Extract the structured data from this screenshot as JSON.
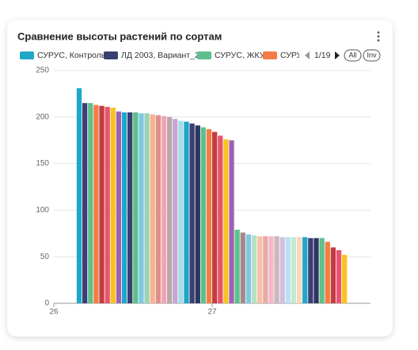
{
  "chart_data": {
    "type": "bar",
    "title": "Сравнение высоты растений по сортам",
    "x": [
      27
    ],
    "xlim": [
      26,
      28
    ],
    "xticks": [
      26,
      27
    ],
    "ylim": [
      0,
      250
    ],
    "yticks": [
      0,
      50,
      100,
      150,
      200,
      250
    ],
    "grid": true,
    "legend_page": "1/19",
    "legend_buttons": [
      "All",
      "Inv"
    ],
    "series": [
      {
        "name": "СУРУС, Контроль",
        "color": "#1fa7c9",
        "values": [
          231
        ]
      },
      {
        "name": "ЛД 2003, Вариант_2",
        "color": "#3b3f72",
        "values": [
          215
        ]
      },
      {
        "name": "СУРУС, ЖКУ",
        "color": "#5cc08c",
        "values": [
          215
        ]
      },
      {
        "name": "СУРУС",
        "color": "#f47c45",
        "values": [
          213
        ]
      },
      {
        "color": "#c23d3f",
        "values": [
          212
        ]
      },
      {
        "color": "#e8546f",
        "values": [
          211
        ]
      },
      {
        "color": "#f9c31f",
        "values": [
          210
        ]
      },
      {
        "color": "#9e62b5",
        "values": [
          206
        ]
      },
      {
        "color": "#1fa7c9",
        "values": [
          205
        ]
      },
      {
        "color": "#3b3f72",
        "values": [
          205
        ]
      },
      {
        "color": "#5cc08c",
        "values": [
          205
        ]
      },
      {
        "color": "#7fc9e0",
        "values": [
          204
        ]
      },
      {
        "color": "#9ad3b8",
        "values": [
          204
        ]
      },
      {
        "color": "#f7b38d",
        "values": [
          203
        ]
      },
      {
        "color": "#e08f8f",
        "values": [
          202
        ]
      },
      {
        "color": "#f2a3b5",
        "values": [
          201
        ]
      },
      {
        "color": "#b9a8a8",
        "values": [
          200
        ]
      },
      {
        "color": "#c4a6d4",
        "values": [
          198
        ]
      },
      {
        "color": "#a9dbe9",
        "values": [
          196
        ]
      },
      {
        "color": "#1fa7c9",
        "values": [
          195
        ]
      },
      {
        "color": "#3b3f72",
        "values": [
          193
        ]
      },
      {
        "color": "#2d3561",
        "values": [
          191
        ]
      },
      {
        "color": "#5cc08c",
        "values": [
          189
        ]
      },
      {
        "color": "#f47c45",
        "values": [
          187
        ]
      },
      {
        "color": "#c23d3f",
        "values": [
          184
        ]
      },
      {
        "color": "#e8546f",
        "values": [
          180
        ]
      },
      {
        "color": "#f9c31f",
        "values": [
          176
        ]
      },
      {
        "color": "#9e62b5",
        "values": [
          175
        ]
      },
      {
        "color": "#5cc08c",
        "values": [
          79
        ]
      },
      {
        "color": "#a38a8a",
        "values": [
          76
        ]
      },
      {
        "color": "#7fc9e0",
        "values": [
          74
        ]
      },
      {
        "color": "#b7e0c8",
        "values": [
          73
        ]
      },
      {
        "color": "#f7c2a2",
        "values": [
          72
        ]
      },
      {
        "color": "#e9a9a9",
        "values": [
          72
        ]
      },
      {
        "color": "#f5b8c6",
        "values": [
          72
        ]
      },
      {
        "color": "#c9b9b9",
        "values": [
          72
        ]
      },
      {
        "color": "#d3bde0",
        "values": [
          71
        ]
      },
      {
        "color": "#b9e2ee",
        "values": [
          71
        ]
      },
      {
        "color": "#c4e8d3",
        "values": [
          71
        ]
      },
      {
        "color": "#f9d7b8",
        "values": [
          71
        ]
      },
      {
        "color": "#1fa7c9",
        "values": [
          71
        ]
      },
      {
        "color": "#3b3f72",
        "values": [
          70
        ]
      },
      {
        "color": "#2d3561",
        "values": [
          70
        ]
      },
      {
        "color": "#5cc08c",
        "values": [
          70
        ]
      },
      {
        "color": "#f47c45",
        "values": [
          66
        ]
      },
      {
        "color": "#c23d3f",
        "values": [
          60
        ]
      },
      {
        "color": "#e8546f",
        "values": [
          57
        ]
      },
      {
        "color": "#f9c31f",
        "values": [
          52
        ]
      }
    ]
  }
}
